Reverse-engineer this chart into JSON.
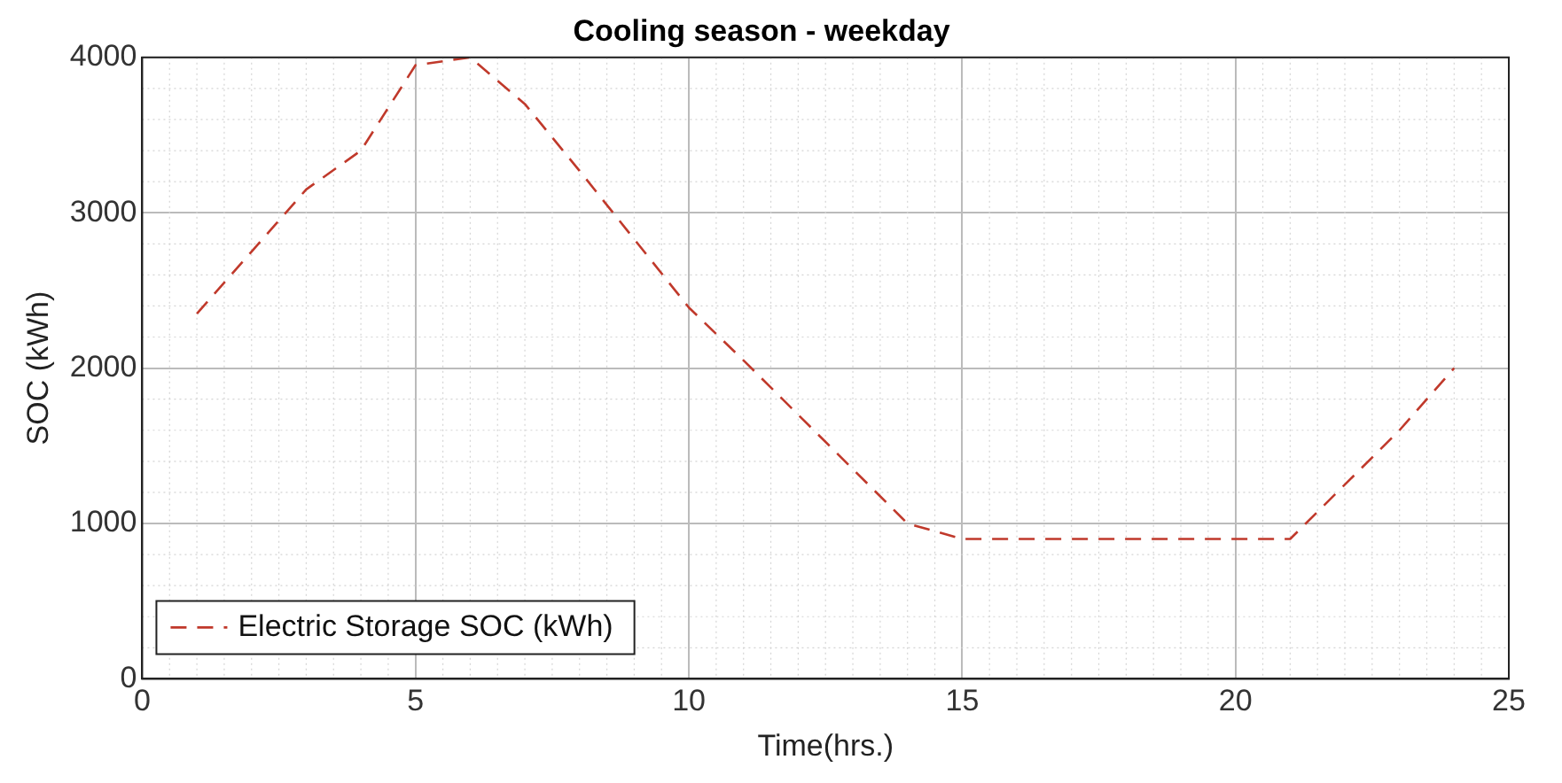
{
  "chart_data": {
    "type": "line",
    "title": "Cooling season - weekday",
    "xlabel": "Time(hrs.)",
    "ylabel": "SOC (kWh)",
    "series": [
      {
        "name": "Electric Storage SOC (kWh)",
        "color": "#c0392b",
        "line_style": "dashed",
        "marker": "none",
        "x": [
          1,
          2,
          3,
          4,
          5,
          6,
          7,
          8,
          9,
          10,
          11,
          12,
          13,
          14,
          15,
          16,
          17,
          18,
          19,
          20,
          21,
          22,
          23,
          24
        ],
        "values": [
          2350,
          2750,
          3150,
          3400,
          3950,
          4000,
          3700,
          3270,
          2830,
          2390,
          2050,
          1700,
          1350,
          1000,
          900,
          900,
          900,
          900,
          900,
          900,
          900,
          1250,
          1600,
          2000
        ]
      }
    ],
    "xlim": [
      0,
      25
    ],
    "xticks": [
      0,
      5,
      10,
      15,
      20,
      25
    ],
    "ylim": [
      0,
      4000
    ],
    "yticks": [
      0,
      1000,
      2000,
      3000,
      4000
    ],
    "grid": true,
    "legend": "bottom left"
  }
}
